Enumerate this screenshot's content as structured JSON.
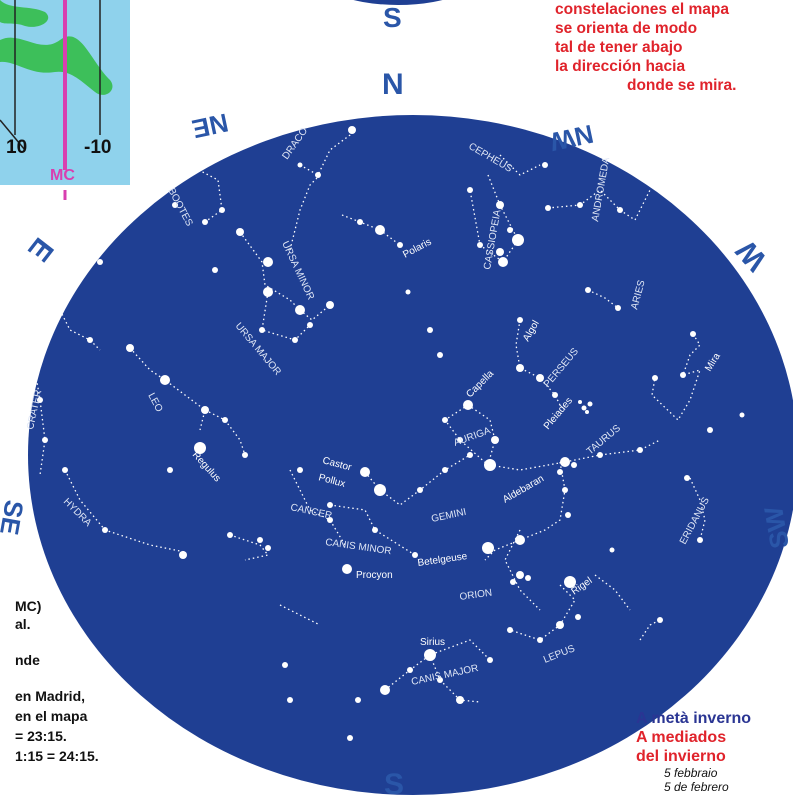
{
  "colors": {
    "sky": "#1f3f93",
    "compass": "#2a56a8",
    "red": "#e0232b",
    "navy": "#2a3593",
    "inset_green": "#3dbf5a",
    "inset_blue": "#8fd2ec",
    "mc": "#d83fb0"
  },
  "inset": {
    "tick_left": "10",
    "tick_right": "-10",
    "mc_label": "MC"
  },
  "compass": {
    "north": "N",
    "south": "S",
    "top_south": "S",
    "east": "E",
    "west": "W",
    "north_east": "NE",
    "north_west": "NW",
    "south_east": "SE",
    "south_west": "SW"
  },
  "orientation_note": [
    "constelaciones el mapa",
    "se orienta de modo",
    "tal de tener abajo",
    "la dirección hacia",
    "donde se mira."
  ],
  "time_note": [
    "MC)",
    "al.",
    "nde",
    "en Madrid,",
    "en el mapa",
    "= 23:15.",
    "1:15 = 24:15."
  ],
  "season": {
    "title_it": "A metà inverno",
    "title_es_1": "A mediados",
    "title_es_2": "del invierno",
    "date_it": "5 febbraio",
    "date_es": "5 de febrero"
  },
  "constellations": [
    "DRACO",
    "CEPHEUS",
    "ANDROMEDA",
    "BOOTES",
    "URSA MINOR",
    "CASSIOPEIA",
    "ARIES",
    "URSA MAJOR",
    "PERSEUS",
    "CRATER",
    "LEO",
    "AURIGA",
    "TAURUS",
    "HYDRA",
    "GEMINI",
    "CANCER",
    "CANIS MINOR",
    "ORION",
    "ERIDANUS",
    "LEPUS",
    "CANIS MAJOR"
  ],
  "stars": [
    "Polaris",
    "Algol",
    "Mira",
    "Capella",
    "Pleiades",
    "Regulus",
    "Castor",
    "Pollux",
    "Aldebaran",
    "Betelgeuse",
    "Procyon",
    "Rigel",
    "Sirius"
  ]
}
